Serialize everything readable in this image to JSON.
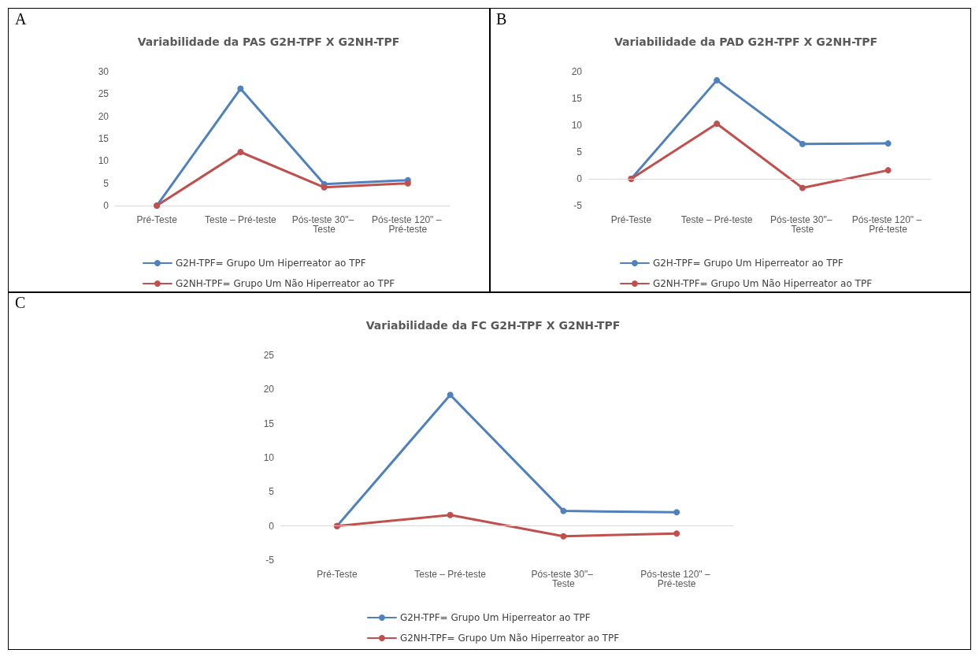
{
  "chart_data": [
    {
      "type": "line",
      "annotations": [
        "A"
      ],
      "title": "Variabilidade da PAS G2H-TPF X G2NH-TPF",
      "categories": [
        "Pré-Teste",
        "Teste – Pré-teste",
        "Pós-teste 30\"– Teste",
        "Pós-teste 120\" – Pré-teste"
      ],
      "series": [
        {
          "name": "G2H-TPF= Grupo Um Hiperreator ao TPF",
          "color": "#4f81bd",
          "values": [
            0,
            26.2,
            4.8,
            5.7
          ]
        },
        {
          "name": "G2NH-TPF= Grupo Um Não Hiperreator ao TPF",
          "color": "#c0504d",
          "values": [
            0,
            12,
            4.1,
            5.0
          ]
        }
      ],
      "ylim": [
        0,
        30
      ],
      "yticks": [
        0,
        5,
        10,
        15,
        20,
        25,
        30
      ],
      "grid": false,
      "legend": "bottom",
      "marker": "circle",
      "line_style": "solid"
    },
    {
      "type": "line",
      "annotations": [
        "B"
      ],
      "title": "Variabilidade da PAD G2H-TPF X G2NH-TPF",
      "categories": [
        "Pré-Teste",
        "Teste – Pré-teste",
        "Pós-teste 30\"– Teste",
        "Pós-teste 120\" – Pré-teste"
      ],
      "series": [
        {
          "name": "G2H-TPF= Grupo Um Hiperreator ao TPF",
          "color": "#4f81bd",
          "values": [
            0,
            18.4,
            6.5,
            6.6
          ]
        },
        {
          "name": "G2NH-TPF= Grupo Um Não Hiperreator ao TPF",
          "color": "#c0504d",
          "values": [
            0,
            10.3,
            -1.7,
            1.6
          ]
        }
      ],
      "ylim": [
        -5,
        20
      ],
      "yticks": [
        -5,
        0,
        5,
        10,
        15,
        20
      ],
      "ref_lines": [
        {
          "axis": "y",
          "value": 0,
          "color": "#d9d9d9"
        }
      ],
      "grid": false,
      "legend": "bottom",
      "marker": "circle",
      "line_style": "solid"
    },
    {
      "type": "line",
      "annotations": [
        "C"
      ],
      "title": "Variabilidade da FC G2H-TPF X G2NH-TPF",
      "categories": [
        "Pré-Teste",
        "Teste – Pré-teste",
        "Pós-teste 30\"– Teste",
        "Pós-teste 120\" – Pré-teste"
      ],
      "series": [
        {
          "name": "G2H-TPF= Grupo Um Hiperreator ao TPF",
          "color": "#4f81bd",
          "values": [
            0,
            19.2,
            2.2,
            2.0
          ]
        },
        {
          "name": "G2NH-TPF= Grupo Um Não Hiperreator ao TPF",
          "color": "#c0504d",
          "values": [
            0,
            1.6,
            -1.5,
            -1.1
          ]
        }
      ],
      "ylim": [
        -5,
        25
      ],
      "yticks": [
        -5,
        0,
        5,
        10,
        15,
        20,
        25
      ],
      "ref_lines": [
        {
          "axis": "y",
          "value": 0,
          "color": "#d9d9d9"
        }
      ],
      "grid": false,
      "legend": "bottom",
      "marker": "circle",
      "line_style": "solid"
    }
  ]
}
